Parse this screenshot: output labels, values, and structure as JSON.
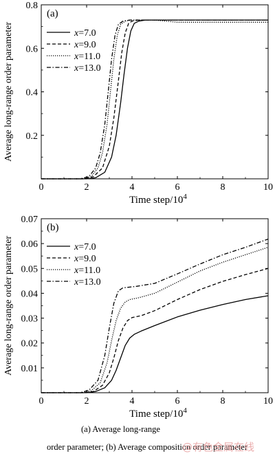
{
  "chart_data": [
    {
      "type": "line",
      "panel_label": "(a)",
      "xlabel": "Time step/10",
      "xlabel_exp": "4",
      "ylabel": "Average long-range order parameter",
      "xlim": [
        0,
        10
      ],
      "ylim": [
        0,
        0.8
      ],
      "xticks": [
        "0",
        "2",
        "4",
        "6",
        "8",
        "10"
      ],
      "yticks": [
        "0.2",
        "0.4",
        "0.6",
        "0.8"
      ],
      "ytick_values": [
        0.2,
        0.4,
        0.6,
        0.8
      ],
      "legend_position": "top-left",
      "grid": false,
      "series": [
        {
          "name": "=7.0",
          "var": "x",
          "style": "solid",
          "x": [
            0,
            2.0,
            2.4,
            2.8,
            3.1,
            3.3,
            3.5,
            3.65,
            3.8,
            3.95,
            4.1,
            4.3,
            4.6,
            5,
            6,
            8,
            10
          ],
          "y": [
            0,
            0,
            0.005,
            0.03,
            0.1,
            0.2,
            0.35,
            0.48,
            0.6,
            0.68,
            0.715,
            0.725,
            0.73,
            0.73,
            0.73,
            0.73,
            0.73
          ]
        },
        {
          "name": "=9.0",
          "var": "x",
          "style": "dashed",
          "x": [
            0,
            1.9,
            2.3,
            2.7,
            3.0,
            3.2,
            3.4,
            3.55,
            3.7,
            3.85,
            4.0,
            4.3,
            5,
            6,
            8,
            10
          ],
          "y": [
            0,
            0,
            0.01,
            0.05,
            0.15,
            0.28,
            0.45,
            0.58,
            0.67,
            0.715,
            0.725,
            0.73,
            0.73,
            0.73,
            0.73,
            0.73
          ]
        },
        {
          "name": "=11.0",
          "var": "x",
          "style": "dotted",
          "x": [
            0,
            1.8,
            2.2,
            2.5,
            2.7,
            2.9,
            3.05,
            3.2,
            3.35,
            3.5,
            3.7,
            4.0,
            5,
            6,
            8,
            10
          ],
          "y": [
            0,
            0,
            0.01,
            0.05,
            0.12,
            0.25,
            0.4,
            0.55,
            0.66,
            0.71,
            0.725,
            0.73,
            0.73,
            0.72,
            0.72,
            0.72
          ]
        },
        {
          "name": "=13.0",
          "var": "x",
          "style": "dashdot",
          "x": [
            0,
            1.7,
            2.1,
            2.4,
            2.6,
            2.8,
            2.95,
            3.1,
            3.25,
            3.4,
            3.6,
            3.9,
            5,
            6,
            8,
            10
          ],
          "y": [
            0,
            0,
            0.01,
            0.05,
            0.12,
            0.25,
            0.4,
            0.55,
            0.66,
            0.71,
            0.725,
            0.73,
            0.73,
            0.73,
            0.73,
            0.73
          ]
        }
      ]
    },
    {
      "type": "line",
      "panel_label": "(b)",
      "xlabel": "Time step/10",
      "xlabel_exp": "4",
      "ylabel": "Average long-range order parameter",
      "xlim": [
        0,
        10
      ],
      "ylim": [
        0,
        0.07
      ],
      "xticks": [
        "0",
        "2",
        "4",
        "6",
        "8",
        "10"
      ],
      "yticks": [
        "0.01",
        "0.02",
        "0.03",
        "0.04",
        "0.05",
        "0.06",
        "0.07"
      ],
      "ytick_values": [
        0.01,
        0.02,
        0.03,
        0.04,
        0.05,
        0.06,
        0.07
      ],
      "legend_position": "top-left",
      "grid": false,
      "series": [
        {
          "name": "=7.0",
          "var": "x",
          "style": "solid",
          "x": [
            0,
            2.0,
            2.4,
            2.8,
            3.1,
            3.3,
            3.5,
            3.7,
            3.9,
            4.1,
            4.4,
            5,
            6,
            7,
            8,
            9,
            10
          ],
          "y": [
            0,
            0,
            0.0005,
            0.002,
            0.005,
            0.009,
            0.014,
            0.019,
            0.022,
            0.0235,
            0.0248,
            0.027,
            0.0305,
            0.0332,
            0.0355,
            0.0375,
            0.039
          ]
        },
        {
          "name": "=9.0",
          "var": "x",
          "style": "dashed",
          "x": [
            0,
            1.9,
            2.3,
            2.7,
            3.0,
            3.2,
            3.4,
            3.6,
            3.8,
            4.0,
            4.4,
            5,
            6,
            7,
            8,
            9,
            10
          ],
          "y": [
            0,
            0,
            0.0005,
            0.003,
            0.008,
            0.014,
            0.021,
            0.026,
            0.029,
            0.0302,
            0.031,
            0.033,
            0.0375,
            0.0415,
            0.0448,
            0.0475,
            0.05
          ]
        },
        {
          "name": "=11.0",
          "var": "x",
          "style": "dotted",
          "x": [
            0,
            1.8,
            2.2,
            2.6,
            2.9,
            3.1,
            3.3,
            3.5,
            3.7,
            3.9,
            4.3,
            5,
            6,
            7,
            8,
            9,
            10
          ],
          "y": [
            0,
            0,
            0.0008,
            0.004,
            0.012,
            0.021,
            0.029,
            0.034,
            0.0365,
            0.0375,
            0.0382,
            0.04,
            0.0445,
            0.049,
            0.0525,
            0.0555,
            0.0585
          ]
        },
        {
          "name": "=13.0",
          "var": "x",
          "style": "dashdot",
          "x": [
            0,
            1.7,
            2.1,
            2.5,
            2.8,
            3.0,
            3.2,
            3.4,
            3.6,
            3.8,
            4.2,
            5,
            6,
            7,
            8,
            9,
            10
          ],
          "y": [
            0,
            0,
            0.001,
            0.005,
            0.015,
            0.026,
            0.036,
            0.041,
            0.0422,
            0.0424,
            0.0428,
            0.044,
            0.0478,
            0.0518,
            0.0555,
            0.0585,
            0.0618
          ]
        }
      ]
    }
  ],
  "caption": {
    "line1": "(a)  Average  long-range",
    "line2": "order parameter; (b) Average composition order parameter"
  },
  "watermark": "@有色金属在线"
}
